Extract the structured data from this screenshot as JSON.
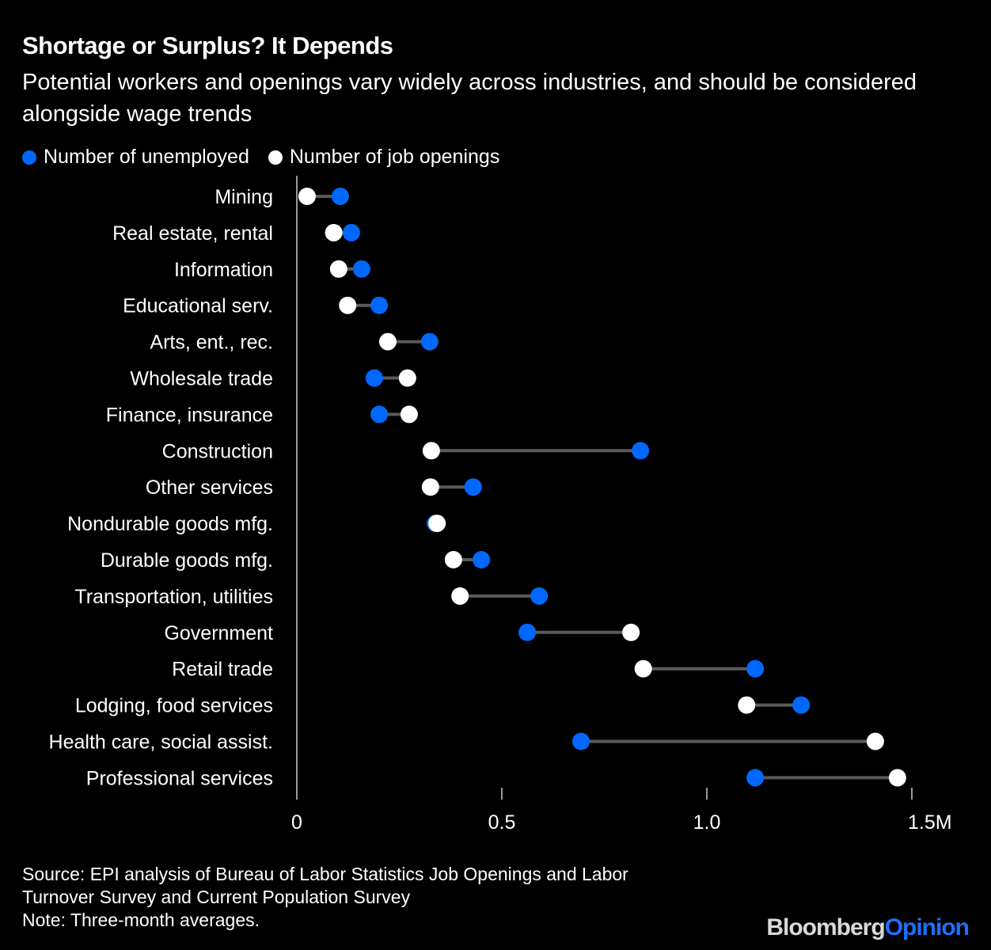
{
  "colors": {
    "background": "#000000",
    "unemployed": "#0068ff",
    "openings": "#ffffff",
    "connector": "#5a5a5a",
    "axis": "#cccccc",
    "brand_primary": "#d9d9d9",
    "brand_accent": "#1f6fff"
  },
  "brand": {
    "part1": "Bloomberg",
    "part2": "Opinion"
  },
  "source_lines": [
    "Source: EPI analysis of Bureau of Labor Statistics Job Openings and Labor",
    "Turnover Survey and Current Population Survey",
    "Note: Three-month averages."
  ],
  "chart_data": {
    "type": "dumbbell",
    "title": "Shortage or Surplus? It Depends",
    "subtitle": "Potential workers and openings vary widely across industries, and should be considered alongside wage trends",
    "xlabel": "",
    "ylabel": "",
    "xlim": [
      0,
      1.5
    ],
    "x_ticks": [
      0,
      0.5,
      1.0,
      1.5
    ],
    "x_tick_labels": [
      "0",
      "0.5",
      "1.0",
      "1.5M"
    ],
    "units": "millions",
    "grid": false,
    "legend": {
      "placement": "top-left",
      "entries": [
        "Number of unemployed",
        "Number of job openings"
      ]
    },
    "categories": [
      "Mining",
      "Real estate, rental",
      "Information",
      "Educational serv.",
      "Arts, ent., rec.",
      "Wholesale trade",
      "Finance, insurance",
      "Construction",
      "Other services",
      "Nondurable goods mfg.",
      "Durable goods mfg.",
      "Transportation, utilities",
      "Government",
      "Retail trade",
      "Lodging, food services",
      "Health care, social assist.",
      "Professional services"
    ],
    "series": [
      {
        "name": "Number of unemployed",
        "values": [
          0.106,
          0.133,
          0.158,
          0.201,
          0.324,
          0.189,
          0.201,
          0.838,
          0.43,
          0.338,
          0.45,
          0.591,
          0.562,
          1.118,
          1.23,
          0.693,
          1.118
        ]
      },
      {
        "name": "Number of job openings",
        "values": [
          0.025,
          0.09,
          0.102,
          0.124,
          0.222,
          0.27,
          0.274,
          0.328,
          0.326,
          0.342,
          0.382,
          0.398,
          0.815,
          0.845,
          1.097,
          1.411,
          1.465
        ]
      }
    ]
  }
}
